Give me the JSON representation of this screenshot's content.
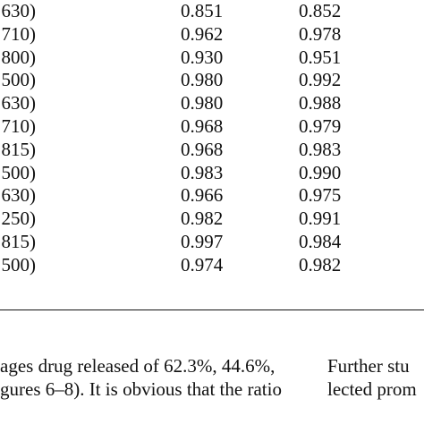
{
  "table": {
    "rows": [
      {
        "label": "630)",
        "v1": "0.851",
        "v2": "0.852"
      },
      {
        "label": "710)",
        "v1": "0.962",
        "v2": "0.978"
      },
      {
        "label": "800)",
        "v1": "0.930",
        "v2": "0.951"
      },
      {
        "label": "500)",
        "v1": "0.980",
        "v2": "0.992"
      },
      {
        "label": "630)",
        "v1": "0.980",
        "v2": "0.988"
      },
      {
        "label": "710)",
        "v1": "0.968",
        "v2": "0.979"
      },
      {
        "label": "815)",
        "v1": "0.968",
        "v2": "0.983"
      },
      {
        "label": "500)",
        "v1": "0.983",
        "v2": "0.990"
      },
      {
        "label": "630)",
        "v1": "0.966",
        "v2": "0.975"
      },
      {
        "label": "250)",
        "v1": "0.982",
        "v2": "0.991"
      },
      {
        "label": "815)",
        "v1": "0.997",
        "v2": "0.984"
      },
      {
        "label": "500)",
        "v1": "0.974",
        "v2": "0.982"
      }
    ]
  },
  "body": {
    "left_col": {
      "line1": "ages drug released of 62.3%, 44.6%,",
      "line2": "gures 6–8). It is obvious that the ratio"
    },
    "right_col": {
      "line1": "Further stu",
      "line2": "lected prom"
    }
  }
}
